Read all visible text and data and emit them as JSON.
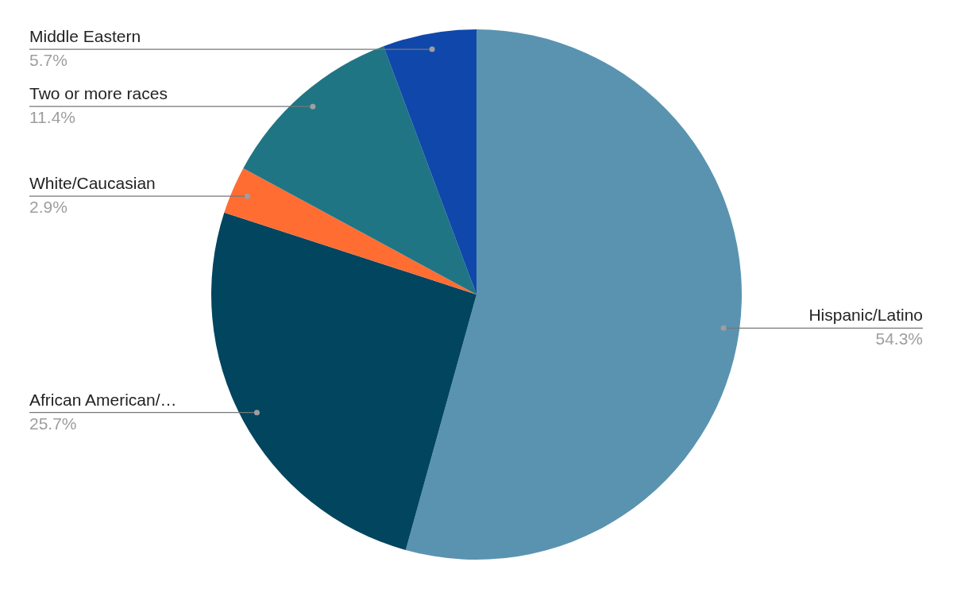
{
  "chart_data": {
    "type": "pie",
    "categories": [
      "Hispanic/Latino",
      "African American/…",
      "White/Caucasian",
      "Two or more races",
      "Middle Eastern"
    ],
    "values": [
      54.3,
      25.7,
      2.9,
      11.4,
      5.7
    ],
    "value_labels": [
      "54.3%",
      "25.7%",
      "2.9%",
      "11.4%",
      "5.7%"
    ],
    "colors": [
      "#5a93b0",
      "#01455f",
      "#ff6d33",
      "#1f7584",
      "#1047aa"
    ]
  }
}
